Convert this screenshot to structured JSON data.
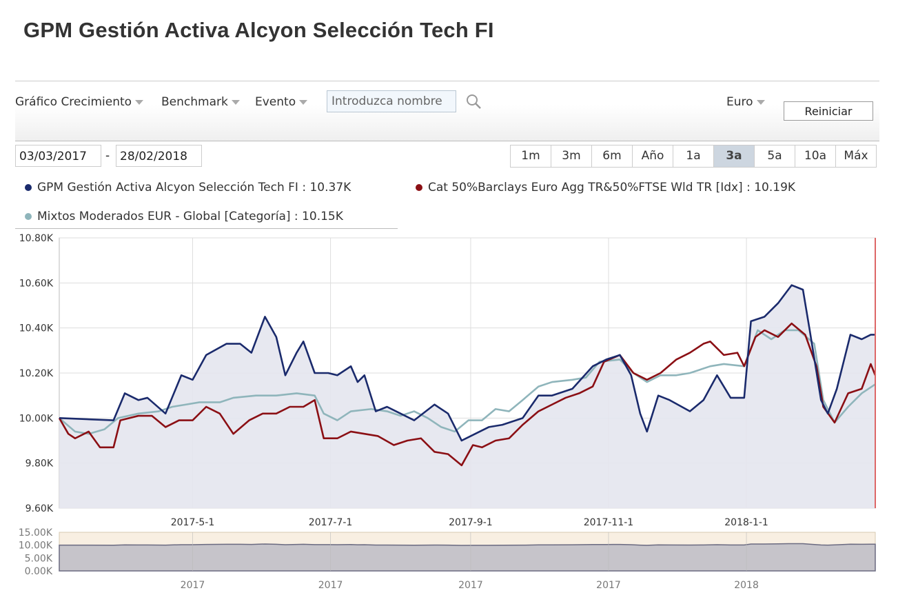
{
  "title": "GPM Gestión Activa Alcyon Selección Tech FI",
  "toolbar": {
    "chart_type": "Gráfico Crecimiento",
    "benchmark": "Benchmark",
    "event": "Evento",
    "search_placeholder": "Introduzca nombre",
    "currency": "Euro",
    "reset": "Reiniciar"
  },
  "range": {
    "from": "03/03/2017",
    "sep": "-",
    "to": "28/02/2018"
  },
  "periods": [
    {
      "label": "1m"
    },
    {
      "label": "3m"
    },
    {
      "label": "6m"
    },
    {
      "label": "Año"
    },
    {
      "label": "1a"
    },
    {
      "label": "3a",
      "active": true
    },
    {
      "label": "5a"
    },
    {
      "label": "10a"
    },
    {
      "label": "Máx"
    }
  ],
  "colors": {
    "fund": "#1a2a6c",
    "benchmark": "#8b0f14",
    "category": "#8fb5bb",
    "fill": "#e4e6ee"
  },
  "chart_data": {
    "type": "line",
    "start_date": "2017-03-03",
    "end_date": "2018-02-28",
    "x_unit": "days since start",
    "ylim": [
      9.6,
      10.8
    ],
    "yticks": [
      "10.80K",
      "10.60K",
      "10.40K",
      "10.20K",
      "10.00K",
      "9.80K",
      "9.60K"
    ],
    "yvals": [
      10.8,
      10.6,
      10.4,
      10.2,
      10.0,
      9.8,
      9.6
    ],
    "xticks": [
      {
        "label": "2017-5-1",
        "d": 59
      },
      {
        "label": "2017-7-1",
        "d": 120
      },
      {
        "label": "2017-9-1",
        "d": 182
      },
      {
        "label": "2017-11-1",
        "d": 243
      },
      {
        "label": "2018-1-1",
        "d": 304
      }
    ],
    "navigator": {
      "yticks": [
        "15.00K",
        "10.00K",
        "5.00K",
        "0.00K"
      ],
      "yvals": [
        15,
        10,
        5,
        0
      ],
      "xticks": [
        "2017",
        "2017",
        "2017",
        "2017",
        "2018"
      ]
    },
    "series": [
      {
        "name": "GPM Gestión Activa Alcyon Selección Tech FI",
        "legend": "GPM Gestión Activa Alcyon Selección Tech FI : 10.37K",
        "color": "#1a2a6c",
        "points": [
          [
            0,
            10.0
          ],
          [
            24,
            9.99
          ],
          [
            29,
            10.11
          ],
          [
            35,
            10.08
          ],
          [
            39,
            10.09
          ],
          [
            47,
            10.02
          ],
          [
            54,
            10.19
          ],
          [
            59,
            10.17
          ],
          [
            65,
            10.28
          ],
          [
            74,
            10.33
          ],
          [
            80,
            10.33
          ],
          [
            85,
            10.29
          ],
          [
            91,
            10.45
          ],
          [
            96,
            10.36
          ],
          [
            100,
            10.19
          ],
          [
            105,
            10.29
          ],
          [
            108,
            10.34
          ],
          [
            113,
            10.2
          ],
          [
            119,
            10.2
          ],
          [
            123,
            10.19
          ],
          [
            129,
            10.23
          ],
          [
            132,
            10.16
          ],
          [
            135,
            10.19
          ],
          [
            140,
            10.03
          ],
          [
            145,
            10.05
          ],
          [
            151,
            10.02
          ],
          [
            157,
            9.99
          ],
          [
            166,
            10.06
          ],
          [
            172,
            10.02
          ],
          [
            178,
            9.9
          ],
          [
            184,
            9.93
          ],
          [
            190,
            9.96
          ],
          [
            196,
            9.97
          ],
          [
            205,
            10.0
          ],
          [
            212,
            10.1
          ],
          [
            218,
            10.1
          ],
          [
            227,
            10.13
          ],
          [
            236,
            10.23
          ],
          [
            242,
            10.26
          ],
          [
            248,
            10.28
          ],
          [
            253,
            10.19
          ],
          [
            257,
            10.02
          ],
          [
            260,
            9.94
          ],
          [
            265,
            10.1
          ],
          [
            270,
            10.08
          ],
          [
            279,
            10.03
          ],
          [
            285,
            10.08
          ],
          [
            291,
            10.19
          ],
          [
            297,
            10.09
          ],
          [
            303,
            10.09
          ],
          [
            306,
            10.43
          ],
          [
            312,
            10.45
          ],
          [
            318,
            10.51
          ],
          [
            324,
            10.59
          ],
          [
            329,
            10.57
          ],
          [
            332,
            10.39
          ],
          [
            337,
            10.08
          ],
          [
            340,
            10.02
          ],
          [
            344,
            10.13
          ],
          [
            350,
            10.37
          ],
          [
            355,
            10.35
          ],
          [
            359,
            10.37
          ],
          [
            361,
            10.37
          ]
        ]
      },
      {
        "name": "Cat 50%Barclays Euro Agg TR&50%FTSE Wld TR [Idx]",
        "legend": "Cat 50%Barclays Euro Agg TR&50%FTSE Wld TR [Idx] : 10.19K",
        "color": "#8b0f14",
        "points": [
          [
            0,
            10.0
          ],
          [
            4,
            9.93
          ],
          [
            7,
            9.91
          ],
          [
            13,
            9.94
          ],
          [
            18,
            9.87
          ],
          [
            24,
            9.87
          ],
          [
            27,
            9.99
          ],
          [
            35,
            10.01
          ],
          [
            41,
            10.01
          ],
          [
            47,
            9.96
          ],
          [
            53,
            9.99
          ],
          [
            59,
            9.99
          ],
          [
            65,
            10.05
          ],
          [
            71,
            10.02
          ],
          [
            77,
            9.93
          ],
          [
            84,
            9.99
          ],
          [
            90,
            10.02
          ],
          [
            96,
            10.02
          ],
          [
            102,
            10.05
          ],
          [
            108,
            10.05
          ],
          [
            113,
            10.08
          ],
          [
            117,
            9.91
          ],
          [
            123,
            9.91
          ],
          [
            129,
            9.94
          ],
          [
            135,
            9.93
          ],
          [
            141,
            9.92
          ],
          [
            148,
            9.88
          ],
          [
            154,
            9.9
          ],
          [
            160,
            9.91
          ],
          [
            166,
            9.85
          ],
          [
            172,
            9.84
          ],
          [
            178,
            9.79
          ],
          [
            183,
            9.88
          ],
          [
            187,
            9.87
          ],
          [
            193,
            9.9
          ],
          [
            199,
            9.91
          ],
          [
            205,
            9.97
          ],
          [
            212,
            10.03
          ],
          [
            218,
            10.06
          ],
          [
            224,
            10.09
          ],
          [
            230,
            10.11
          ],
          [
            236,
            10.14
          ],
          [
            241,
            10.25
          ],
          [
            248,
            10.28
          ],
          [
            254,
            10.2
          ],
          [
            260,
            10.17
          ],
          [
            266,
            10.2
          ],
          [
            273,
            10.26
          ],
          [
            279,
            10.29
          ],
          [
            285,
            10.33
          ],
          [
            288,
            10.34
          ],
          [
            294,
            10.28
          ],
          [
            300,
            10.29
          ],
          [
            303,
            10.23
          ],
          [
            308,
            10.36
          ],
          [
            312,
            10.39
          ],
          [
            318,
            10.36
          ],
          [
            324,
            10.42
          ],
          [
            330,
            10.37
          ],
          [
            335,
            10.23
          ],
          [
            338,
            10.05
          ],
          [
            343,
            9.98
          ],
          [
            349,
            10.11
          ],
          [
            355,
            10.13
          ],
          [
            359,
            10.24
          ],
          [
            361,
            10.19
          ]
        ]
      },
      {
        "name": "Mixtos Moderados EUR - Global [Categoría]",
        "legend": "Mixtos Moderados EUR - Global [Categoría] : 10.15K",
        "color": "#8fb5bb",
        "points": [
          [
            0,
            10.0
          ],
          [
            7,
            9.94
          ],
          [
            13,
            9.93
          ],
          [
            20,
            9.95
          ],
          [
            26,
            10.0
          ],
          [
            35,
            10.02
          ],
          [
            44,
            10.03
          ],
          [
            50,
            10.05
          ],
          [
            56,
            10.06
          ],
          [
            62,
            10.07
          ],
          [
            71,
            10.07
          ],
          [
            77,
            10.09
          ],
          [
            87,
            10.1
          ],
          [
            96,
            10.1
          ],
          [
            105,
            10.11
          ],
          [
            113,
            10.1
          ],
          [
            117,
            10.02
          ],
          [
            123,
            9.99
          ],
          [
            129,
            10.03
          ],
          [
            138,
            10.04
          ],
          [
            145,
            10.03
          ],
          [
            151,
            10.01
          ],
          [
            157,
            10.03
          ],
          [
            163,
            10.0
          ],
          [
            169,
            9.96
          ],
          [
            175,
            9.94
          ],
          [
            181,
            9.99
          ],
          [
            187,
            9.99
          ],
          [
            193,
            10.04
          ],
          [
            199,
            10.03
          ],
          [
            205,
            10.08
          ],
          [
            212,
            10.14
          ],
          [
            218,
            10.16
          ],
          [
            227,
            10.17
          ],
          [
            233,
            10.18
          ],
          [
            239,
            10.25
          ],
          [
            248,
            10.26
          ],
          [
            254,
            10.2
          ],
          [
            260,
            10.16
          ],
          [
            266,
            10.19
          ],
          [
            273,
            10.19
          ],
          [
            279,
            10.2
          ],
          [
            288,
            10.23
          ],
          [
            294,
            10.24
          ],
          [
            303,
            10.23
          ],
          [
            309,
            10.39
          ],
          [
            315,
            10.35
          ],
          [
            321,
            10.39
          ],
          [
            327,
            10.39
          ],
          [
            334,
            10.33
          ],
          [
            338,
            10.08
          ],
          [
            343,
            9.98
          ],
          [
            349,
            10.05
          ],
          [
            355,
            10.11
          ],
          [
            361,
            10.15
          ]
        ]
      }
    ]
  }
}
